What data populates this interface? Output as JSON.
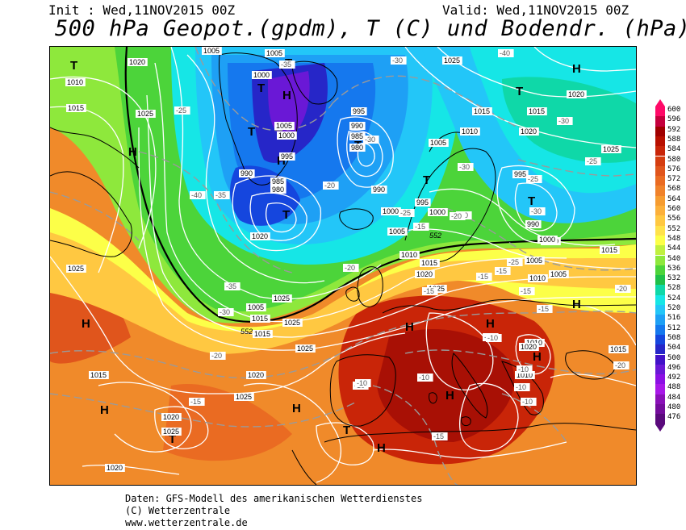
{
  "header": {
    "init": "Init : Wed,11NOV2015 00Z",
    "valid": "Valid: Wed,11NOV2015 00Z",
    "title": "500 hPa Geopot.(gpdm), T (C) und Bodendr. (hPa)"
  },
  "footer": {
    "line1": "Daten: GFS-Modell des amerikanischen Wetterdienstes",
    "line2": "(C) Wetterzentrale",
    "line3": "www.wetterzentrale.de"
  },
  "legend": {
    "values": [
      "600",
      "596",
      "592",
      "588",
      "584",
      "580",
      "576",
      "572",
      "568",
      "564",
      "560",
      "556",
      "552",
      "548",
      "544",
      "540",
      "536",
      "532",
      "528",
      "524",
      "520",
      "516",
      "512",
      "508",
      "504",
      "500",
      "496",
      "492",
      "488",
      "484",
      "480",
      "476"
    ],
    "colors": [
      "#ff0a68",
      "#c5003d",
      "#a00000",
      "#b81000",
      "#c92508",
      "#d53d10",
      "#e0551c",
      "#ea6b22",
      "#f0822a",
      "#f69c30",
      "#fcb03a",
      "#ffc841",
      "#ffe24a",
      "#fcff48",
      "#c0f03f",
      "#8ee83c",
      "#4cd43a",
      "#1fc049",
      "#0fd8a8",
      "#16e6e6",
      "#23c6f8",
      "#1ea0f5",
      "#1578ee",
      "#1546de",
      "#2626c8",
      "#4212c8",
      "#6a18d6",
      "#8c10e4",
      "#a818e8",
      "#8a10b8",
      "#740c9c",
      "#5a0a7c"
    ]
  },
  "map_labels": {
    "highs": [
      "H",
      "H",
      "H",
      "H",
      "H",
      "H",
      "H",
      "H",
      "H",
      "H",
      "H",
      "H",
      "H"
    ],
    "lows": [
      "T",
      "T",
      "T",
      "T",
      "T",
      "T",
      "T",
      "T",
      "T",
      "T",
      "T"
    ],
    "isobars": [
      "1020",
      "1005",
      "1005",
      "1025",
      "1010",
      "1000",
      "995",
      "990",
      "985",
      "980",
      "1015",
      "1025",
      "1015",
      "1005",
      "1000",
      "995",
      "990",
      "985",
      "980",
      "1010",
      "1005",
      "1020",
      "1015",
      "1025",
      "990",
      "1000",
      "995",
      "1000",
      "1005",
      "1010",
      "1015",
      "1020",
      "1025",
      "1025",
      "1020",
      "1020",
      "1025",
      "1025",
      "1025",
      "1015",
      "1020",
      "995",
      "990",
      "1005",
      "1010",
      "1015",
      "1000",
      "1005",
      "1015",
      "1020",
      "1025",
      "1025",
      "1020",
      "1015",
      "1010",
      "1005",
      "1000",
      "1020",
      "1010",
      "1015"
    ],
    "contour_552": "552",
    "temps": [
      "-40",
      "-30",
      "-35",
      "-25",
      "-30",
      "-35",
      "-40",
      "-30",
      "-20",
      "-25",
      "-30",
      "-25",
      "-30",
      "-20",
      "-25",
      "-15",
      "-20",
      "-30",
      "-35",
      "-25",
      "-20",
      "-20",
      "-15",
      "-15",
      "-10",
      "-15",
      "-10",
      "-10",
      "-10",
      "-15",
      "-15",
      "-10",
      "-15",
      "-10",
      "-20",
      "-20",
      "-15",
      "-10",
      "-10"
    ]
  }
}
